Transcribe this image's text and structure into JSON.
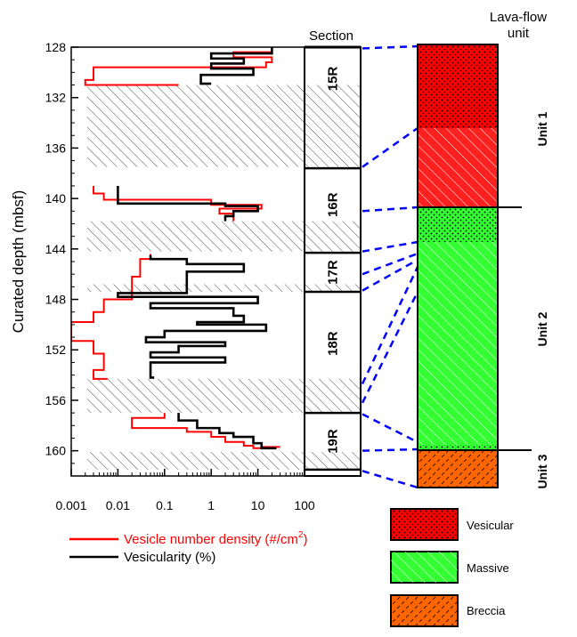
{
  "chart_data": [
    {
      "type": "line",
      "xlim": [
        0.001,
        100
      ],
      "ylim": [
        162,
        128
      ],
      "x_scale": "log",
      "ylabel": "Curated depth (mbsf)",
      "x_ticks": [
        "0.001",
        "0.01",
        "0.1",
        "1",
        "10",
        "100"
      ],
      "y_ticks": [
        "128",
        "132",
        "136",
        "140",
        "144",
        "148",
        "152",
        "156",
        "160"
      ],
      "legend": [
        "Vesicle number density (#/cm²)",
        "Vesicularity (%)"
      ],
      "colors": {
        "density": "#ff0000",
        "vesicularity": "#000000"
      },
      "no_recovery_depths": [
        [
          131.0,
          137.5
        ],
        [
          141.8,
          144.2
        ],
        [
          146.8,
          147.4
        ],
        [
          154.3,
          157.0
        ],
        [
          160.1,
          161.5
        ]
      ],
      "series": [
        {
          "name": "Vesicle number density (#/cm²)",
          "points": [
            [
              20,
              128.2
            ],
            [
              3,
              128.4
            ],
            [
              3,
              128.6
            ],
            [
              20,
              128.8
            ],
            [
              15,
              129.2
            ],
            [
              0.003,
              129.6
            ],
            [
              0.003,
              130.2
            ],
            [
              0.002,
              130.6
            ],
            [
              0.002,
              131.0
            ],
            [
              0.2,
              131.0
            ],
            [
              0.003,
              139.0
            ],
            [
              0.003,
              139.6
            ],
            [
              0.005,
              139.6
            ],
            [
              0.005,
              140.1
            ],
            [
              1,
              140.1
            ],
            [
              12,
              140.5
            ],
            [
              1.5,
              140.8
            ],
            [
              3,
              141.2
            ],
            [
              3,
              141.8
            ],
            [
              0.05,
              144.4
            ],
            [
              0.03,
              144.8
            ],
            [
              0.03,
              145.6
            ],
            [
              0.02,
              146.2
            ],
            [
              0.02,
              146.7
            ],
            [
              0.005,
              148.0
            ],
            [
              0.005,
              148.5
            ],
            [
              0.003,
              149.0
            ],
            [
              0.003,
              149.4
            ],
            [
              0.001,
              149.8
            ],
            [
              0.001,
              150.8
            ],
            [
              0.003,
              151.3
            ],
            [
              0.003,
              151.9
            ],
            [
              0.005,
              152.3
            ],
            [
              0.005,
              153.2
            ],
            [
              0.003,
              153.6
            ],
            [
              0.003,
              154.0
            ],
            [
              0.006,
              154.3
            ],
            [
              0.1,
              157.0
            ],
            [
              0.02,
              157.4
            ],
            [
              0.02,
              158.0
            ],
            [
              0.3,
              158.2
            ],
            [
              1,
              158.5
            ],
            [
              2,
              158.9
            ],
            [
              5,
              159.3
            ],
            [
              8,
              159.6
            ],
            [
              12,
              159.8
            ],
            [
              30,
              159.7
            ]
          ]
        },
        {
          "name": "Vesicularity (%)",
          "points": [
            [
              20,
              128.0
            ],
            [
              1,
              128.5
            ],
            [
              5,
              128.9
            ],
            [
              1,
              129.3
            ],
            [
              8,
              129.7
            ],
            [
              0.6,
              130.2
            ],
            [
              0.6,
              130.7
            ],
            [
              1,
              130.9
            ],
            [
              0.6,
              130.9
            ],
            [
              0.01,
              139.0
            ],
            [
              0.01,
              140.0
            ],
            [
              2,
              140.4
            ],
            [
              10,
              140.6
            ],
            [
              3,
              141.0
            ],
            [
              2,
              141.4
            ],
            [
              2,
              141.8
            ],
            [
              0.05,
              144.5
            ],
            [
              0.3,
              144.8
            ],
            [
              5,
              145.2
            ],
            [
              0.3,
              145.8
            ],
            [
              0.3,
              146.2
            ],
            [
              0.01,
              147.5
            ],
            [
              0.01,
              147.6
            ],
            [
              10,
              147.8
            ],
            [
              0.05,
              148.3
            ],
            [
              3,
              148.7
            ],
            [
              5,
              149.3
            ],
            [
              0.5,
              149.8
            ],
            [
              15,
              150.0
            ],
            [
              0.1,
              150.5
            ],
            [
              0.04,
              151.0
            ],
            [
              2,
              151.4
            ],
            [
              0.2,
              151.7
            ],
            [
              0.05,
              152.2
            ],
            [
              2,
              152.6
            ],
            [
              0.05,
              153.0
            ],
            [
              0.05,
              153.4
            ],
            [
              0.06,
              154.2
            ],
            [
              0.2,
              157.0
            ],
            [
              0.5,
              157.6
            ],
            [
              1.5,
              158.2
            ],
            [
              3,
              158.6
            ],
            [
              8,
              158.9
            ],
            [
              12,
              159.4
            ],
            [
              25,
              159.8
            ]
          ]
        }
      ]
    },
    {
      "type": "table",
      "title": "Section",
      "items": [
        {
          "label": "15R",
          "top": 128.0,
          "bottom": 137.6
        },
        {
          "label": "16R",
          "top": 137.6,
          "bottom": 144.3
        },
        {
          "label": "17R",
          "top": 144.3,
          "bottom": 147.4
        },
        {
          "label": "18R",
          "top": 147.4,
          "bottom": 157.0
        },
        {
          "label": "19R",
          "top": 157.0,
          "bottom": 161.5
        }
      ]
    },
    {
      "type": "table",
      "title": "Lava-flow\nunit",
      "title_lines": [
        "Lava-flow",
        "unit"
      ],
      "units": [
        {
          "label": "Unit 1"
        },
        {
          "label": "Unit 2"
        },
        {
          "label": "Unit 3"
        }
      ],
      "legend": [
        {
          "label": "Vesicular",
          "color": "#ff0000"
        },
        {
          "label": "Massive",
          "color": "#33ff33"
        },
        {
          "label": "Breccia",
          "color": "#ff6600"
        }
      ]
    }
  ]
}
